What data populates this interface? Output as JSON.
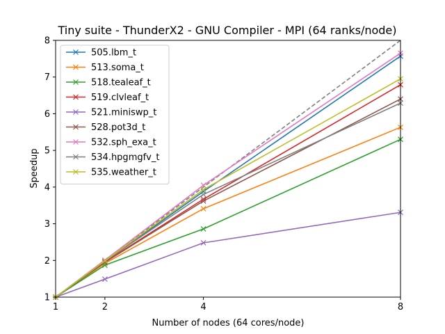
{
  "chart_data": {
    "type": "line",
    "title": "Tiny suite - ThunderX2 - GNU Compiler - MPI (64 ranks/node)",
    "xlabel": "Number of nodes (64 cores/node)",
    "ylabel": "Speedup",
    "x": [
      1,
      2,
      4,
      8
    ],
    "x_ticks": [
      "1",
      "2",
      "4",
      "8"
    ],
    "y_ticks": [
      "1",
      "2",
      "3",
      "4",
      "5",
      "6",
      "7",
      "8"
    ],
    "xlim": [
      1,
      8
    ],
    "ylim": [
      1,
      8
    ],
    "grid": false,
    "legend_position": "top-left",
    "marker": "x",
    "series": [
      {
        "name": "505.lbm_t",
        "color": "#1f77b4",
        "values": [
          1,
          1.97,
          3.88,
          7.57
        ]
      },
      {
        "name": "513.soma_t",
        "color": "#ff7f0e",
        "values": [
          1,
          1.92,
          3.41,
          5.63
        ]
      },
      {
        "name": "518.tealeaf_t",
        "color": "#2ca02c",
        "values": [
          1,
          1.87,
          2.86,
          5.3
        ]
      },
      {
        "name": "519.clvleaf_t",
        "color": "#d62728",
        "values": [
          1,
          1.96,
          3.67,
          6.79
        ]
      },
      {
        "name": "521.miniswp_t",
        "color": "#9467bd",
        "values": [
          1,
          1.49,
          2.48,
          3.31
        ]
      },
      {
        "name": "528.pot3d_t",
        "color": "#8c564b",
        "values": [
          1,
          1.95,
          3.62,
          6.4
        ]
      },
      {
        "name": "532.sph_exa_t",
        "color": "#e377c2",
        "values": [
          1,
          2.01,
          4.05,
          7.65
        ]
      },
      {
        "name": "534.hpgmgfv_t",
        "color": "#7f7f7f",
        "values": [
          1,
          1.98,
          3.8,
          6.29
        ]
      },
      {
        "name": "535.weather_t",
        "color": "#bcbd22",
        "values": [
          1,
          1.99,
          3.93,
          6.95
        ]
      }
    ],
    "ideal_line": {
      "color": "#7f7f7f",
      "style": "dashed",
      "values": [
        1,
        2,
        4,
        8
      ]
    }
  }
}
